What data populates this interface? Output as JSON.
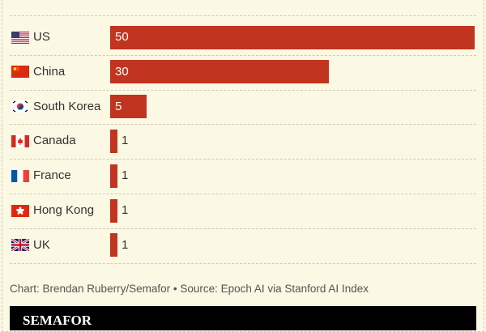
{
  "chart_data": {
    "type": "bar",
    "orientation": "horizontal",
    "categories": [
      "US",
      "China",
      "South Korea",
      "Canada",
      "France",
      "Hong Kong",
      "UK"
    ],
    "values": [
      50,
      30,
      5,
      1,
      1,
      1,
      1
    ],
    "flags": [
      "us-flag-icon",
      "china-flag-icon",
      "south-korea-flag-icon",
      "canada-flag-icon",
      "france-flag-icon",
      "hong-kong-flag-icon",
      "uk-flag-icon"
    ],
    "bar_color": "#c13520",
    "xlim": [
      0,
      50
    ],
    "grid": false
  },
  "footer": {
    "credit": "Chart: Brendan Ruberry/Semafor • Source: Epoch AI via Stanford AI Index"
  },
  "brand": {
    "logo": "SEMAFOR"
  }
}
